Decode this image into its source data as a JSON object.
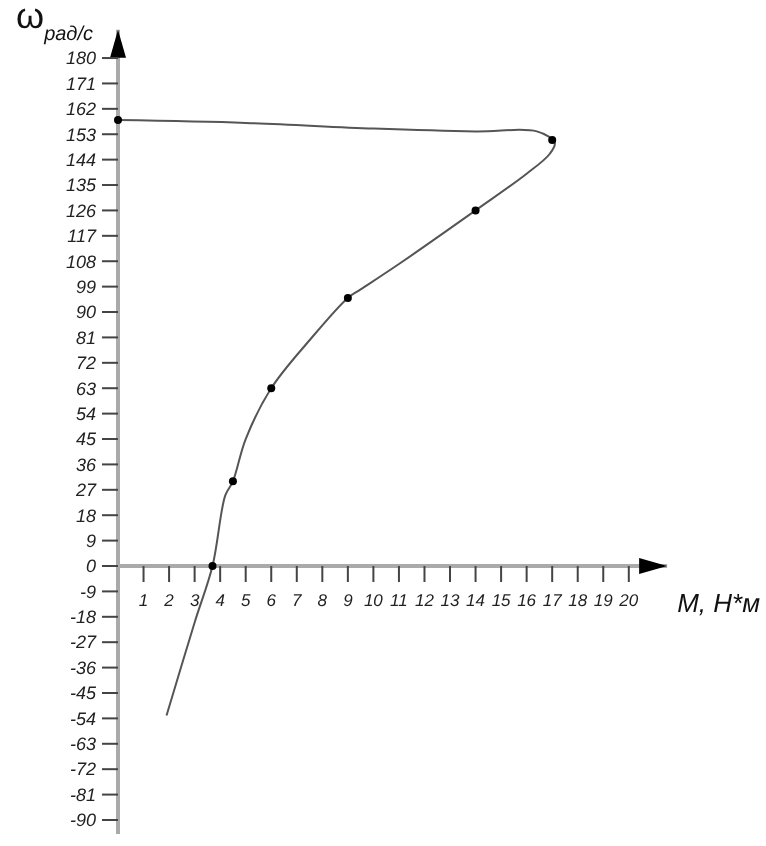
{
  "chart_data": {
    "type": "line",
    "xlabel": "M, Н*м",
    "ylabel": "ω$_{рад/с}$",
    "xlim": [
      0,
      21.5
    ],
    "ylim": [
      -95,
      190
    ],
    "xticks": [
      {
        "value": 1,
        "label": "1"
      },
      2,
      {
        "value": 3,
        "label": "3"
      },
      4,
      {
        "value": 5,
        "label": "5"
      },
      6,
      {
        "value": 7,
        "label": "7"
      },
      8,
      {
        "value": 9,
        "label": "9"
      },
      10,
      {
        "value": 11,
        "label": "11"
      },
      12,
      {
        "value": 13,
        "label": "13"
      },
      14,
      {
        "value": 15,
        "label": "15"
      },
      16,
      {
        "value": 17,
        "label": "17"
      },
      18,
      {
        "value": 19,
        "label": "19"
      },
      20
    ],
    "yticks": [
      -90,
      -81,
      -72,
      -63,
      -54,
      -45,
      -36,
      -27,
      -18,
      -9,
      0,
      9,
      18,
      27,
      36,
      45,
      54,
      63,
      72,
      81,
      90,
      99,
      108,
      117,
      126,
      135,
      144,
      153,
      162,
      171,
      180
    ],
    "grid": false,
    "series": [
      {
        "color": "#555555",
        "line_style": "solid",
        "marker": "none",
        "x": [
          0,
          5,
          10,
          14,
          16.4,
          17.1,
          16.9,
          16,
          14,
          11,
          9.5,
          9,
          7.5,
          6,
          5,
          4.5,
          4.2,
          3.7,
          3,
          1.9
        ],
        "values": [
          158,
          157,
          155,
          154,
          154,
          150,
          146,
          139,
          126,
          107,
          98,
          95,
          80,
          63,
          45,
          30,
          25,
          0,
          -20,
          -53
        ]
      },
      {
        "type": "scatter",
        "color": "#000000",
        "marker": "circle",
        "x": [
          0,
          17,
          14,
          9,
          6,
          4.5,
          3.7
        ],
        "values": [
          158,
          151,
          126,
          95,
          63,
          30,
          0
        ]
      }
    ]
  }
}
